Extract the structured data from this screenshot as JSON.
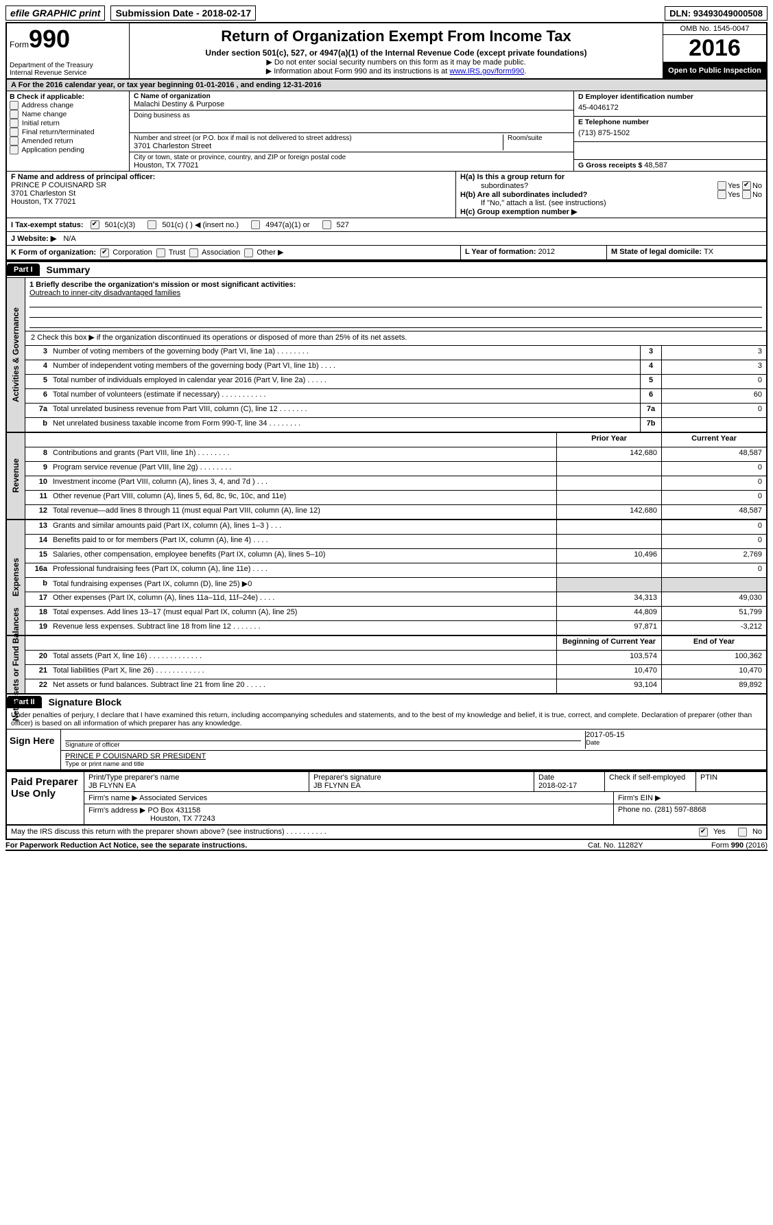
{
  "top": {
    "efile": "efile GRAPHIC print",
    "submission_label": "Submission Date - ",
    "submission_date": "2018-02-17",
    "dln_label": "DLN: ",
    "dln": "93493049000508"
  },
  "header": {
    "form_label": "Form",
    "form_num": "990",
    "dept1": "Department of the Treasury",
    "dept2": "Internal Revenue Service",
    "title": "Return of Organization Exempt From Income Tax",
    "subtitle": "Under section 501(c), 527, or 4947(a)(1) of the Internal Revenue Code (except private foundations)",
    "note1": "▶ Do not enter social security numbers on this form as it may be made public.",
    "note2_pre": "▶ Information about Form 990 and its instructions is at ",
    "note2_link": "www.IRS.gov/form990",
    "note2_post": ".",
    "omb": "OMB No. 1545-0047",
    "year": "2016",
    "open_public": "Open to Public Inspection"
  },
  "row_a": "A   For the 2016 calendar year, or tax year beginning 01-01-2016    , and ending 12-31-2016",
  "section_b": {
    "b_label": "B Check if applicable:",
    "checks": {
      "address_change": "Address change",
      "name_change": "Name change",
      "initial_return": "Initial return",
      "final_return": "Final return/terminated",
      "amended_return": "Amended return",
      "application_pending": "Application pending"
    },
    "c_name_label": "C Name of organization",
    "c_name": "Malachi Destiny & Purpose",
    "dba_label": "Doing business as",
    "street_label": "Number and street (or P.O. box if mail is not delivered to street address)",
    "suite_label": "Room/suite",
    "street": "3701 Charleston Street",
    "city_label": "City or town, state or province, country, and ZIP or foreign postal code",
    "city": "Houston, TX  77021",
    "d_ein_label": "D Employer identification number",
    "d_ein": "45-4046172",
    "e_tel_label": "E Telephone number",
    "e_tel": "(713) 875-1502",
    "g_label": "G Gross receipts $ ",
    "g_val": "48,587"
  },
  "section_fh": {
    "f_label": "F  Name and address of principal officer:",
    "f_name": "PRINCE P COUISNARD SR",
    "f_addr1": "3701 Charleston St",
    "f_addr2": "Houston, TX  77021",
    "ha_label": "H(a)  Is this a group return for",
    "ha_sub": "subordinates?",
    "hb_label": "H(b)  Are all subordinates included?",
    "hb_note": "If \"No,\" attach a list. (see instructions)",
    "hc_label": "H(c)  Group exemption number ▶",
    "yes": "Yes",
    "no": "No"
  },
  "row_i": {
    "label": "I   Tax-exempt status:",
    "opt1": "501(c)(3)",
    "opt2": "501(c) (   ) ◀ (insert no.)",
    "opt3": "4947(a)(1) or",
    "opt4": "527"
  },
  "row_j": {
    "label": "J   Website: ▶",
    "val": "N/A"
  },
  "row_klm": {
    "k_label": "K Form of organization:",
    "k_corp": "Corporation",
    "k_trust": "Trust",
    "k_assoc": "Association",
    "k_other": "Other ▶",
    "l_label": "L Year of formation: ",
    "l_val": "2012",
    "m_label": "M State of legal domicile: ",
    "m_val": "TX"
  },
  "part1": {
    "header": "Part I",
    "title": "Summary",
    "line1_label": "1   Briefly describe the organization's mission or most significant activities:",
    "line1_val": "Outreach to inner-city disadvantaged families",
    "line2": "2   Check this box ▶        if the organization discontinued its operations or disposed of more than 25% of its net assets.",
    "rows_gov": [
      {
        "n": "3",
        "d": "Number of voting members of the governing body (Part VI, line 1a)   .    .    .    .    .    .    .    .",
        "b": "3",
        "v": "3"
      },
      {
        "n": "4",
        "d": "Number of independent voting members of the governing body (Part VI, line 1b)    .    .    .    .",
        "b": "4",
        "v": "3"
      },
      {
        "n": "5",
        "d": "Total number of individuals employed in calendar year 2016 (Part V, line 2a)  .    .    .    .    .",
        "b": "5",
        "v": "0"
      },
      {
        "n": "6",
        "d": "Total number of volunteers (estimate if necessary)    .    .    .    .    .    .    .    .    .    .    .",
        "b": "6",
        "v": "60"
      },
      {
        "n": "7a",
        "d": "Total unrelated business revenue from Part VIII, column (C), line 12   .    .    .    .    .    .    .",
        "b": "7a",
        "v": "0"
      },
      {
        "n": "b",
        "d": "Net unrelated business taxable income from Form 990-T, line 34    .    .    .    .    .    .    .    .",
        "b": "7b",
        "v": ""
      }
    ],
    "col_prior": "Prior Year",
    "col_current": "Current Year",
    "rows_rev": [
      {
        "n": "8",
        "d": "Contributions and grants (Part VIII, line 1h)    .    .    .    .    .    .    .    .",
        "p": "142,680",
        "c": "48,587"
      },
      {
        "n": "9",
        "d": "Program service revenue (Part VIII, line 2g)    .    .    .    .    .    .    .    .",
        "p": "",
        "c": "0"
      },
      {
        "n": "10",
        "d": "Investment income (Part VIII, column (A), lines 3, 4, and 7d )    .    .    .",
        "p": "",
        "c": "0"
      },
      {
        "n": "11",
        "d": "Other revenue (Part VIII, column (A), lines 5, 6d, 8c, 9c, 10c, and 11e)",
        "p": "",
        "c": "0"
      },
      {
        "n": "12",
        "d": "Total revenue—add lines 8 through 11 (must equal Part VIII, column (A), line 12)",
        "p": "142,680",
        "c": "48,587"
      }
    ],
    "rows_exp": [
      {
        "n": "13",
        "d": "Grants and similar amounts paid (Part IX, column (A), lines 1–3 )    .    .    .",
        "p": "",
        "c": "0"
      },
      {
        "n": "14",
        "d": "Benefits paid to or for members (Part IX, column (A), line 4)    .    .    .    .",
        "p": "",
        "c": "0"
      },
      {
        "n": "15",
        "d": "Salaries, other compensation, employee benefits (Part IX, column (A), lines 5–10)",
        "p": "10,496",
        "c": "2,769"
      },
      {
        "n": "16a",
        "d": "Professional fundraising fees (Part IX, column (A), line 11e)    .    .    .    .",
        "p": "",
        "c": "0"
      },
      {
        "n": "b",
        "d": "Total fundraising expenses (Part IX, column (D), line 25) ▶0",
        "p": "",
        "c": "",
        "grey": true
      },
      {
        "n": "17",
        "d": "Other expenses (Part IX, column (A), lines 11a–11d, 11f–24e)    .    .    .    .",
        "p": "34,313",
        "c": "49,030"
      },
      {
        "n": "18",
        "d": "Total expenses. Add lines 13–17 (must equal Part IX, column (A), line 25)",
        "p": "44,809",
        "c": "51,799"
      },
      {
        "n": "19",
        "d": "Revenue less expenses. Subtract line 18 from line 12 .    .    .    .    .    .    .",
        "p": "97,871",
        "c": "-3,212"
      }
    ],
    "col_begin": "Beginning of Current Year",
    "col_end": "End of Year",
    "rows_net": [
      {
        "n": "20",
        "d": "Total assets (Part X, line 16)   .    .    .    .    .    .    .    .    .    .    .    .    .",
        "p": "103,574",
        "c": "100,362"
      },
      {
        "n": "21",
        "d": "Total liabilities (Part X, line 26)   .    .    .    .    .    .    .    .    .    .    .    .",
        "p": "10,470",
        "c": "10,470"
      },
      {
        "n": "22",
        "d": "Net assets or fund balances. Subtract line 21 from line 20   .    .    .    .    .",
        "p": "93,104",
        "c": "89,892"
      }
    ],
    "side_labels": {
      "gov": "Activities & Governance",
      "rev": "Revenue",
      "exp": "Expenses",
      "net": "Net Assets or Fund Balances"
    }
  },
  "part2": {
    "header": "Part II",
    "title": "Signature Block",
    "perjury": "Under penalties of perjury, I declare that I have examined this return, including accompanying schedules and statements, and to the best of my knowledge and belief, it is true, correct, and complete. Declaration of preparer (other than officer) is based on all information of which preparer has any knowledge.",
    "sign_left": "Sign Here",
    "sig_officer_label": "Signature of officer",
    "sig_date": "2017-05-15",
    "date_label": "Date",
    "officer_name": "PRINCE P COUISNARD SR PRESIDENT",
    "officer_label": "Type or print name and title",
    "paid_left": "Paid Preparer Use Only",
    "prep_name_label": "Print/Type preparer's name",
    "prep_name": "JB FLYNN EA",
    "prep_sig_label": "Preparer's signature",
    "prep_sig": "JB FLYNN EA",
    "prep_date_label": "Date",
    "prep_date": "2018-02-17",
    "self_emp_label": "Check         if self-employed",
    "ptin_label": "PTIN",
    "firm_name_label": "Firm's name    ▶",
    "firm_name": "Associated Services",
    "firm_ein_label": "Firm's EIN ▶",
    "firm_addr_label": "Firm's address ▶",
    "firm_addr1": "PO Box 431158",
    "firm_addr2": "Houston, TX  77243",
    "firm_phone_label": "Phone no. ",
    "firm_phone": "(281) 597-8868",
    "discuss": "May the IRS discuss this return with the preparer shown above? (see instructions)    .    .    .    .    .    .    .    .    .    .",
    "yes": "Yes",
    "no": "No"
  },
  "footer": {
    "left": "For Paperwork Reduction Act Notice, see the separate instructions.",
    "center": "Cat. No. 11282Y",
    "right": "Form 990 (2016)"
  }
}
